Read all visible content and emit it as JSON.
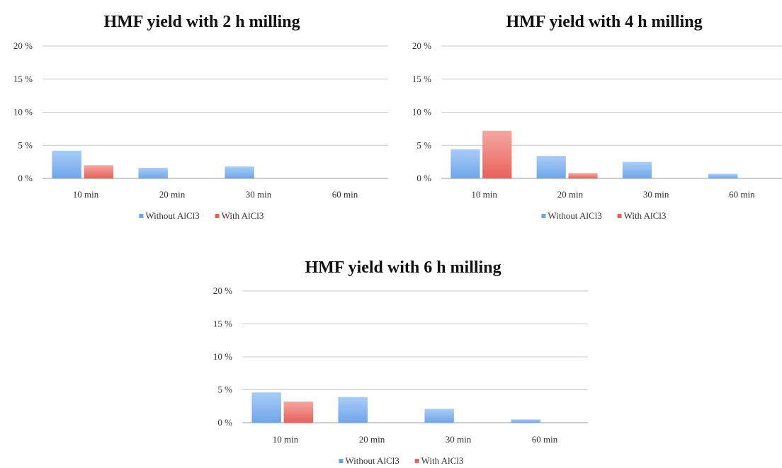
{
  "legend": [
    "Without AlCl3",
    "With AlCl3"
  ],
  "colors": {
    "without": "#6fa6ea",
    "without_light": "#a9cdf7",
    "with": "#e8615a",
    "with_light": "#f4a8a2"
  },
  "chart_data": [
    {
      "type": "bar",
      "title": "HMF yield with 2 h milling",
      "categories": [
        "10 min",
        "20 min",
        "30 min",
        "60 min"
      ],
      "yticks": [
        "0 %",
        "5 %",
        "10 %",
        "15 %",
        "20 %"
      ],
      "ylim": [
        0,
        20
      ],
      "grid": true,
      "legend_position": "bottom",
      "series": [
        {
          "name": "Without AlCl3",
          "values": [
            4.2,
            1.6,
            1.8,
            0
          ]
        },
        {
          "name": "With AlCl3",
          "values": [
            2.0,
            0,
            0,
            0
          ]
        }
      ]
    },
    {
      "type": "bar",
      "title": "HMF yield with 4 h milling",
      "categories": [
        "10 min",
        "20 min",
        "30 min",
        "60 min"
      ],
      "yticks": [
        "0 %",
        "5 %",
        "10 %",
        "15 %",
        "20 %"
      ],
      "ylim": [
        0,
        20
      ],
      "grid": true,
      "legend_position": "bottom",
      "series": [
        {
          "name": "Without AlCl3",
          "values": [
            4.4,
            3.4,
            2.5,
            0.7
          ]
        },
        {
          "name": "With AlCl3",
          "values": [
            7.2,
            0.8,
            0,
            0
          ]
        }
      ]
    },
    {
      "type": "bar",
      "title": "HMF yield with 6 h milling",
      "categories": [
        "10 min",
        "20 min",
        "30 min",
        "60 min"
      ],
      "yticks": [
        "0 %",
        "5 %",
        "10 %",
        "15 %",
        "20 %"
      ],
      "ylim": [
        0,
        20
      ],
      "grid": true,
      "legend_position": "bottom",
      "series": [
        {
          "name": "Without AlCl3",
          "values": [
            4.6,
            3.9,
            2.1,
            0.5
          ]
        },
        {
          "name": "With AlCl3",
          "values": [
            3.2,
            0,
            0,
            0
          ]
        }
      ]
    }
  ]
}
